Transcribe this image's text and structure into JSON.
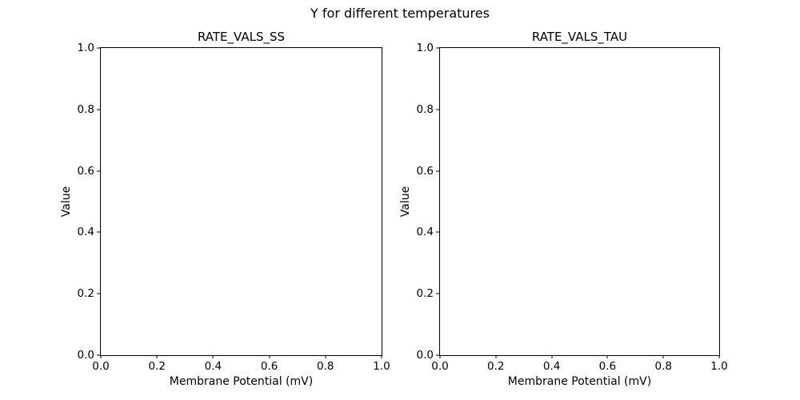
{
  "figure": {
    "suptitle": "Y for different temperatures",
    "background_color": "#ffffff",
    "text_color": "#000000",
    "spine_color": "#000000"
  },
  "chart_data": [
    {
      "type": "line",
      "title": "RATE_VALS_SS",
      "xlabel": "Membrane Potential (mV)",
      "ylabel": "Value",
      "xlim": [
        0.0,
        1.0
      ],
      "ylim": [
        0.0,
        1.0
      ],
      "xticks": [
        "0.0",
        "0.2",
        "0.4",
        "0.6",
        "0.8",
        "1.0"
      ],
      "yticks": [
        "0.0",
        "0.2",
        "0.4",
        "0.6",
        "0.8",
        "1.0"
      ],
      "grid": false,
      "legend": null,
      "series": []
    },
    {
      "type": "line",
      "title": "RATE_VALS_TAU",
      "xlabel": "Membrane Potential (mV)",
      "ylabel": "Value",
      "xlim": [
        0.0,
        1.0
      ],
      "ylim": [
        0.0,
        1.0
      ],
      "xticks": [
        "0.0",
        "0.2",
        "0.4",
        "0.6",
        "0.8",
        "1.0"
      ],
      "yticks": [
        "0.0",
        "0.2",
        "0.4",
        "0.6",
        "0.8",
        "1.0"
      ],
      "grid": false,
      "legend": null,
      "series": []
    }
  ]
}
